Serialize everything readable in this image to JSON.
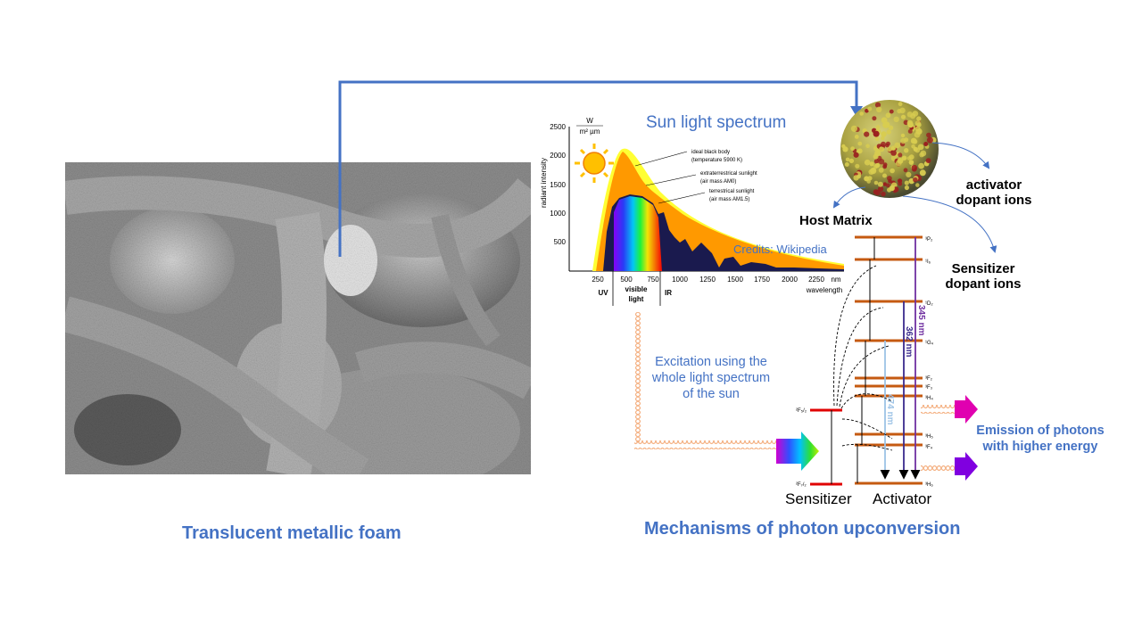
{
  "foam_caption": "Translucent metallic foam",
  "mechanism_caption": "Mechanisms of photon upconversion",
  "spectrum": {
    "title": "Sun light spectrum",
    "unit_top": "W",
    "unit_bottom": "m² µm",
    "ylabel": "radiant intensity",
    "xunit": "nm",
    "xlabel": "wavelength",
    "y_ticks": [
      "2500",
      "2000",
      "1500",
      "1000",
      "500"
    ],
    "x_ticks": [
      "250",
      "500",
      "750",
      "1000",
      "1250",
      "1500",
      "1750",
      "2000",
      "2250"
    ],
    "bands": {
      "uv": "UV",
      "visible_1": "visible",
      "visible_2": "light",
      "ir": "IR"
    },
    "legend": {
      "blackbody_1": "ideal black body",
      "blackbody_2": "(temperature 5900 K)",
      "extra_1": "extraterrestrical sunlight",
      "extra_2": "(air mass AM0)",
      "terr_1": "terrestrical sunlight",
      "terr_2": "(air mass AM1.5)"
    },
    "credits": "Credits: Wikipedia",
    "colors": {
      "blackbody": "#ffff33",
      "am0": "#ff9900",
      "am15": "#1a1a4e"
    }
  },
  "particle": {
    "host_matrix": "Host Matrix",
    "activator_1": "activator",
    "activator_2": "dopant ions",
    "sensitizer_1": "Sensitizer",
    "sensitizer_2": "dopant ions"
  },
  "excitation": {
    "line1": "Excitation using the",
    "line2": "whole light spectrum",
    "line3": "of the sun"
  },
  "energy": {
    "sensitizer_label": "Sensitizer",
    "activator_label": "Activator",
    "sens_levels": [
      {
        "text": "²F₅/₂"
      },
      {
        "text": "²F₇/₂"
      }
    ],
    "act_levels": [
      {
        "text": "³P₂"
      },
      {
        "text": "¹I₆"
      },
      {
        "text": "¹D₂"
      },
      {
        "text": "¹G₄"
      },
      {
        "text": "³F₂"
      },
      {
        "text": "³F₃"
      },
      {
        "text": "³H₄"
      },
      {
        "text": "³H₅"
      },
      {
        "text": "³F₄"
      },
      {
        "text": "³H₆"
      }
    ],
    "transitions": [
      {
        "label": "345 nm",
        "color": "#7030a0"
      },
      {
        "label": "362 nm",
        "color": "#3a2a8c"
      },
      {
        "label": "474 nm",
        "color": "#9dc3e6"
      }
    ]
  },
  "emission_1": "Emission of photons",
  "emission_2": "with higher energy"
}
